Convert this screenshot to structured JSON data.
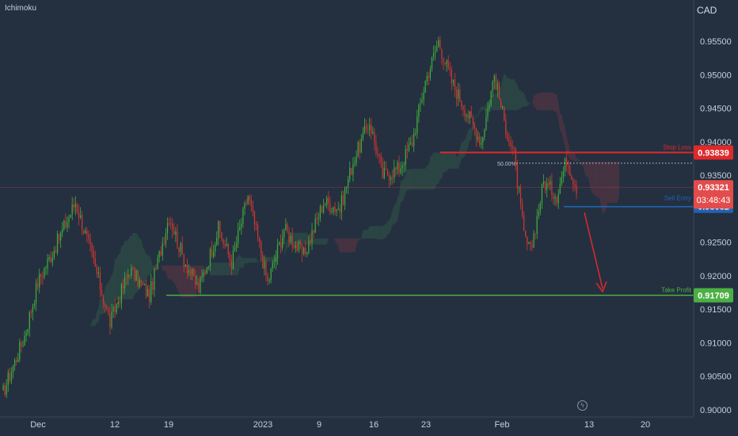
{
  "indicator": "Ichimoku",
  "currency": "CAD",
  "colors": {
    "background": "#243040",
    "bull": "#3fae3a",
    "bear": "#d7352f",
    "stop_loss": "#e0292b",
    "entry": "#1e63b4",
    "take_profit": "#4caf43",
    "current": "#e34c4c"
  },
  "chart_data": {
    "type": "candlestick",
    "instrument_quote": "CAD",
    "overlay": "Ichimoku",
    "ylim": [
      0.9,
      0.959
    ],
    "y_ticks": [
      "0.95500",
      "0.95000",
      "0.94500",
      "0.94000",
      "0.93500",
      "0.92500",
      "0.92000",
      "0.91500",
      "0.91000",
      "0.90500",
      "0.90000"
    ],
    "x_labels": [
      "Dec",
      "12",
      "19",
      "2023",
      "9",
      "16",
      "23",
      "Feb",
      "13",
      "20"
    ],
    "levels": [
      {
        "label": "Stop Loss",
        "price": "0.93839",
        "value": 0.93839
      },
      {
        "label": "Sell Entry",
        "price": "0.93032",
        "value": 0.93032
      },
      {
        "label": "Take Profit",
        "price": "0.91709",
        "value": 0.91709
      }
    ],
    "fib_label": "50.00%",
    "fib_value": 0.9368,
    "current_price": "0.93321",
    "current_value": 0.93321,
    "countdown": "03:48:43",
    "trend_points": [
      {
        "x": 0,
        "y": 0.902
      },
      {
        "x": 14,
        "y": 0.911
      },
      {
        "x": 22,
        "y": 0.919
      },
      {
        "x": 32,
        "y": 0.924
      },
      {
        "x": 45,
        "y": 0.931
      },
      {
        "x": 55,
        "y": 0.923
      },
      {
        "x": 66,
        "y": 0.913
      },
      {
        "x": 78,
        "y": 0.921
      },
      {
        "x": 90,
        "y": 0.917
      },
      {
        "x": 102,
        "y": 0.929
      },
      {
        "x": 110,
        "y": 0.923
      },
      {
        "x": 120,
        "y": 0.918
      },
      {
        "x": 132,
        "y": 0.927
      },
      {
        "x": 140,
        "y": 0.922
      },
      {
        "x": 150,
        "y": 0.932
      },
      {
        "x": 162,
        "y": 0.919
      },
      {
        "x": 172,
        "y": 0.927
      },
      {
        "x": 184,
        "y": 0.923
      },
      {
        "x": 196,
        "y": 0.931
      },
      {
        "x": 206,
        "y": 0.93
      },
      {
        "x": 214,
        "y": 0.937
      },
      {
        "x": 224,
        "y": 0.943
      },
      {
        "x": 232,
        "y": 0.935
      },
      {
        "x": 242,
        "y": 0.936
      },
      {
        "x": 250,
        "y": 0.94
      },
      {
        "x": 258,
        "y": 0.949
      },
      {
        "x": 266,
        "y": 0.955
      },
      {
        "x": 274,
        "y": 0.949
      },
      {
        "x": 284,
        "y": 0.944
      },
      {
        "x": 292,
        "y": 0.94
      },
      {
        "x": 300,
        "y": 0.95
      },
      {
        "x": 306,
        "y": 0.943
      },
      {
        "x": 312,
        "y": 0.938
      },
      {
        "x": 318,
        "y": 0.926
      },
      {
        "x": 322,
        "y": 0.9235
      },
      {
        "x": 330,
        "y": 0.934
      },
      {
        "x": 338,
        "y": 0.932
      },
      {
        "x": 344,
        "y": 0.9375
      },
      {
        "x": 350,
        "y": 0.9332
      }
    ]
  }
}
